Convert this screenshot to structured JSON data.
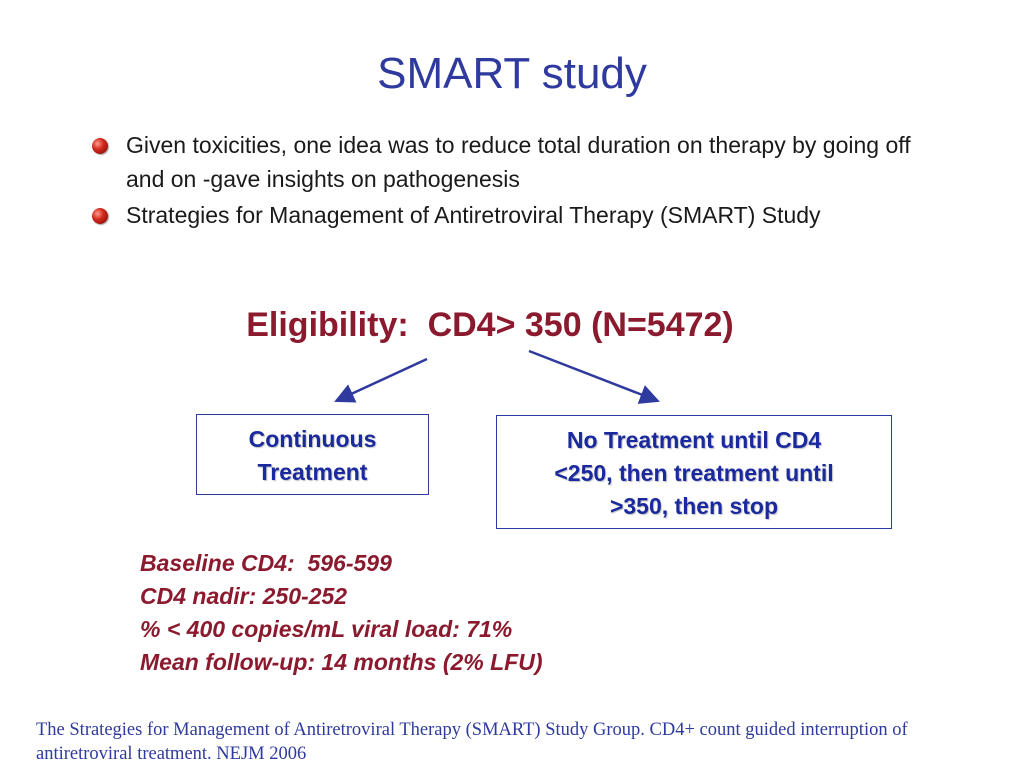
{
  "slide": {
    "title": "SMART study",
    "bullets": [
      "Given toxicities, one idea was to reduce total duration on therapy by going off and on -gave insights on pathogenesis",
      "Strategies for Management of Antiretroviral Therapy (SMART) Study"
    ],
    "eligibility": "Eligibility:  CD4> 350 (N=5472)",
    "arms": {
      "left": [
        "Continuous",
        "Treatment"
      ],
      "right": [
        "No Treatment until CD4",
        "<250, then treatment until",
        ">350, then stop"
      ]
    },
    "baseline": [
      "Baseline CD4:  596-599",
      "CD4 nadir: 250-252",
      "% < 400 copies/mL viral load: 71%",
      "Mean follow-up: 14 months (2% LFU)"
    ],
    "citation": "The Strategies for Management of Antiretroviral Therapy (SMART) Study Group. CD4+ count guided interruption of antiretroviral treatment. NEJM 2006"
  },
  "colors": {
    "title": "#2f3a9e",
    "accent_red": "#8b1a2e",
    "box_text": "#1a2a9e",
    "bullet": "#d2281c"
  },
  "icons": {
    "bullet": "red-sphere-bullet-icon",
    "arrow": "arrow-icon"
  }
}
